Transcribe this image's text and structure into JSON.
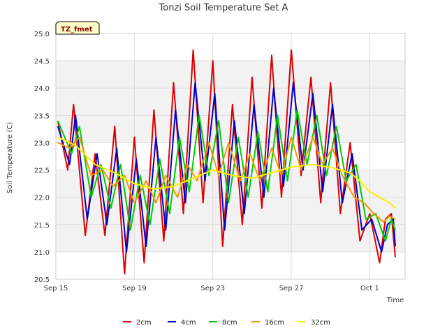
{
  "chart_data": {
    "type": "line",
    "title": "Tonzi Soil Temperature Set A",
    "xlabel": "Time",
    "ylabel": "Soil Temperature (C)",
    "annotation": "TZ_fmet",
    "xlim": [
      0,
      17.8
    ],
    "ylim": [
      20.5,
      25.0
    ],
    "yticks": [
      "20.5",
      "21.0",
      "21.5",
      "22.0",
      "22.5",
      "23.0",
      "23.5",
      "24.0",
      "24.5",
      "25.0"
    ],
    "xticks": [
      {
        "label": "Sep 15",
        "day": 0
      },
      {
        "label": "Sep 19",
        "day": 4
      },
      {
        "label": "Sep 23",
        "day": 8
      },
      {
        "label": "Sep 27",
        "day": 12
      },
      {
        "label": "Oct 1",
        "day": 16
      }
    ],
    "grid": true,
    "legend_position": "bottom",
    "series": [
      {
        "name": "2cm",
        "color": "#dd0000",
        "x": [
          0.1,
          0.6,
          0.9,
          1.5,
          2.0,
          2.5,
          3.0,
          3.5,
          4.0,
          4.5,
          5.0,
          5.5,
          6.0,
          6.5,
          7.0,
          7.5,
          8.0,
          8.5,
          9.0,
          9.5,
          10.0,
          10.5,
          11.0,
          11.5,
          12.0,
          12.5,
          13.0,
          13.5,
          14.0,
          14.5,
          15.0,
          15.5,
          16.0,
          16.5,
          16.8,
          17.1,
          17.3
        ],
        "y": [
          23.4,
          22.5,
          23.7,
          21.3,
          22.8,
          21.3,
          23.3,
          20.6,
          23.1,
          20.8,
          23.6,
          21.2,
          24.1,
          21.7,
          24.7,
          21.9,
          24.5,
          21.1,
          23.7,
          21.5,
          24.2,
          21.8,
          24.6,
          22.0,
          24.7,
          22.4,
          24.2,
          21.9,
          24.1,
          21.7,
          23.0,
          21.2,
          21.7,
          20.8,
          21.6,
          21.7,
          20.9
        ]
      },
      {
        "name": "4cm",
        "color": "#0000cc",
        "x": [
          0.1,
          0.7,
          1.0,
          1.6,
          2.1,
          2.6,
          3.1,
          3.6,
          4.1,
          4.6,
          5.1,
          5.6,
          6.1,
          6.6,
          7.1,
          7.6,
          8.1,
          8.6,
          9.1,
          9.6,
          10.1,
          10.6,
          11.1,
          11.6,
          12.1,
          12.6,
          13.1,
          13.6,
          14.1,
          14.6,
          15.1,
          15.6,
          16.1,
          16.6,
          16.9,
          17.2,
          17.3
        ],
        "y": [
          23.3,
          22.6,
          23.5,
          21.6,
          22.8,
          21.5,
          22.9,
          21.0,
          22.7,
          21.1,
          23.1,
          21.4,
          23.6,
          21.9,
          24.1,
          22.3,
          23.9,
          21.4,
          23.4,
          21.7,
          23.7,
          22.0,
          24.0,
          22.2,
          24.1,
          22.5,
          23.9,
          22.1,
          23.7,
          21.9,
          22.8,
          21.4,
          21.6,
          21.0,
          21.5,
          21.6,
          21.1
        ]
      },
      {
        "name": "8cm",
        "color": "#00cc00",
        "x": [
          0.1,
          0.8,
          1.2,
          1.8,
          2.3,
          2.8,
          3.3,
          3.8,
          4.3,
          4.8,
          5.3,
          5.8,
          6.3,
          6.8,
          7.3,
          7.8,
          8.3,
          8.8,
          9.3,
          9.8,
          10.3,
          10.8,
          11.3,
          11.8,
          12.3,
          12.8,
          13.3,
          13.8,
          14.3,
          14.8,
          15.3,
          15.8,
          16.3,
          16.8,
          17.1,
          17.3
        ],
        "y": [
          23.4,
          22.8,
          23.3,
          22.0,
          22.6,
          21.8,
          22.6,
          21.4,
          22.4,
          21.5,
          22.7,
          21.7,
          23.1,
          22.1,
          23.5,
          22.4,
          23.4,
          21.9,
          23.1,
          22.0,
          23.2,
          22.1,
          23.5,
          22.3,
          23.6,
          22.6,
          23.5,
          22.4,
          23.3,
          22.3,
          22.6,
          21.6,
          21.7,
          21.2,
          21.6,
          21.4
        ]
      },
      {
        "name": "16cm",
        "color": "#ee9900",
        "x": [
          0.1,
          0.7,
          1.2,
          1.8,
          2.4,
          2.9,
          3.5,
          4.0,
          4.6,
          5.1,
          5.6,
          6.2,
          6.7,
          7.2,
          7.8,
          8.3,
          8.8,
          9.4,
          9.9,
          10.4,
          11.0,
          11.5,
          12.0,
          12.5,
          13.1,
          13.6,
          14.1,
          14.6,
          15.2,
          15.7,
          16.2,
          16.7,
          17.0,
          17.3
        ],
        "y": [
          23.0,
          22.9,
          23.1,
          22.4,
          22.5,
          22.2,
          22.4,
          21.9,
          22.3,
          21.9,
          22.4,
          22.0,
          22.6,
          22.3,
          23.0,
          22.4,
          23.0,
          22.3,
          22.8,
          22.3,
          22.9,
          22.4,
          23.1,
          22.5,
          23.1,
          22.6,
          22.9,
          22.4,
          22.0,
          21.9,
          21.7,
          21.55,
          21.65,
          21.6
        ]
      },
      {
        "name": "32cm",
        "color": "#ffee00",
        "x": [
          0.1,
          1.0,
          2.0,
          3.0,
          4.0,
          5.0,
          6.0,
          7.0,
          8.0,
          9.0,
          10.0,
          11.0,
          12.0,
          13.0,
          14.0,
          15.0,
          15.5,
          16.0,
          16.5,
          17.0,
          17.3
        ],
        "y": [
          23.1,
          22.95,
          22.6,
          22.45,
          22.25,
          22.15,
          22.2,
          22.35,
          22.5,
          22.4,
          22.35,
          22.45,
          22.55,
          22.6,
          22.55,
          22.45,
          22.3,
          22.1,
          22.0,
          21.9,
          21.8
        ]
      }
    ]
  }
}
